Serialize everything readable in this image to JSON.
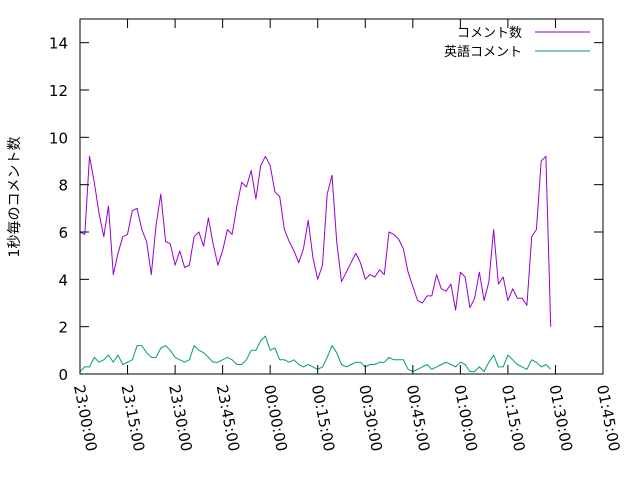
{
  "chart_data": {
    "type": "line",
    "title": "",
    "xlabel": "",
    "ylabel": "1秒毎のコメント数",
    "x_ticks": [
      "23:00:00",
      "23:15:00",
      "23:30:00",
      "23:45:00",
      "00:00:00",
      "00:15:00",
      "00:30:00",
      "00:45:00",
      "01:00:00",
      "01:15:00",
      "01:30:00",
      "01:45:00"
    ],
    "y_ticks": [
      "0",
      "2",
      "4",
      "6",
      "8",
      "10",
      "12",
      "14"
    ],
    "xlim": [
      "23:00:00",
      "01:45:00"
    ],
    "ylim": [
      0,
      15
    ],
    "x_interval_minutes": 1.5,
    "grid": false,
    "legend_position": "top-right",
    "series": [
      {
        "name": "コメント数",
        "color": "#9400d3",
        "values": [
          6.0,
          5.9,
          9.2,
          8.1,
          6.8,
          5.8,
          7.1,
          4.2,
          5.1,
          5.8,
          5.9,
          6.9,
          7.0,
          6.1,
          5.6,
          4.2,
          6.3,
          7.6,
          5.6,
          5.5,
          4.6,
          5.2,
          4.5,
          4.6,
          5.8,
          6.0,
          5.4,
          6.6,
          5.5,
          4.6,
          5.2,
          6.1,
          5.9,
          7.1,
          8.1,
          7.9,
          8.6,
          7.4,
          8.8,
          9.2,
          8.8,
          7.7,
          7.5,
          6.1,
          5.6,
          5.2,
          4.7,
          5.3,
          6.5,
          4.9,
          4.0,
          4.6,
          7.6,
          8.4,
          5.6,
          3.9,
          4.3,
          4.7,
          5.1,
          4.7,
          4.0,
          4.2,
          4.1,
          4.4,
          4.2,
          6.0,
          5.9,
          5.7,
          5.3,
          4.3,
          3.7,
          3.1,
          3.0,
          3.3,
          3.3,
          4.2,
          3.6,
          3.5,
          3.8,
          2.7,
          4.3,
          4.1,
          2.8,
          3.2,
          4.3,
          3.1,
          3.9,
          6.1,
          3.8,
          4.1,
          3.1,
          3.6,
          3.2,
          3.2,
          2.9,
          5.8,
          6.1,
          9.0,
          9.2,
          2.0
        ]
      },
      {
        "name": "英語コメント",
        "color": "#009e73",
        "values": [
          0.1,
          0.3,
          0.3,
          0.7,
          0.5,
          0.6,
          0.8,
          0.5,
          0.8,
          0.4,
          0.5,
          0.6,
          1.2,
          1.2,
          0.9,
          0.7,
          0.7,
          1.1,
          1.2,
          1.0,
          0.7,
          0.6,
          0.5,
          0.6,
          1.2,
          1.0,
          0.9,
          0.7,
          0.5,
          0.5,
          0.6,
          0.7,
          0.6,
          0.4,
          0.4,
          0.6,
          1.0,
          1.0,
          1.4,
          1.6,
          1.0,
          1.1,
          0.6,
          0.6,
          0.5,
          0.6,
          0.4,
          0.3,
          0.4,
          0.3,
          0.2,
          0.3,
          0.7,
          1.2,
          0.9,
          0.4,
          0.3,
          0.4,
          0.5,
          0.5,
          0.3,
          0.4,
          0.4,
          0.5,
          0.5,
          0.7,
          0.6,
          0.6,
          0.6,
          0.2,
          0.1,
          0.2,
          0.3,
          0.4,
          0.2,
          0.3,
          0.4,
          0.5,
          0.4,
          0.3,
          0.5,
          0.4,
          0.1,
          0.1,
          0.3,
          0.1,
          0.5,
          0.8,
          0.3,
          0.3,
          0.8,
          0.6,
          0.4,
          0.3,
          0.2,
          0.6,
          0.5,
          0.3,
          0.4,
          0.2
        ]
      }
    ]
  }
}
